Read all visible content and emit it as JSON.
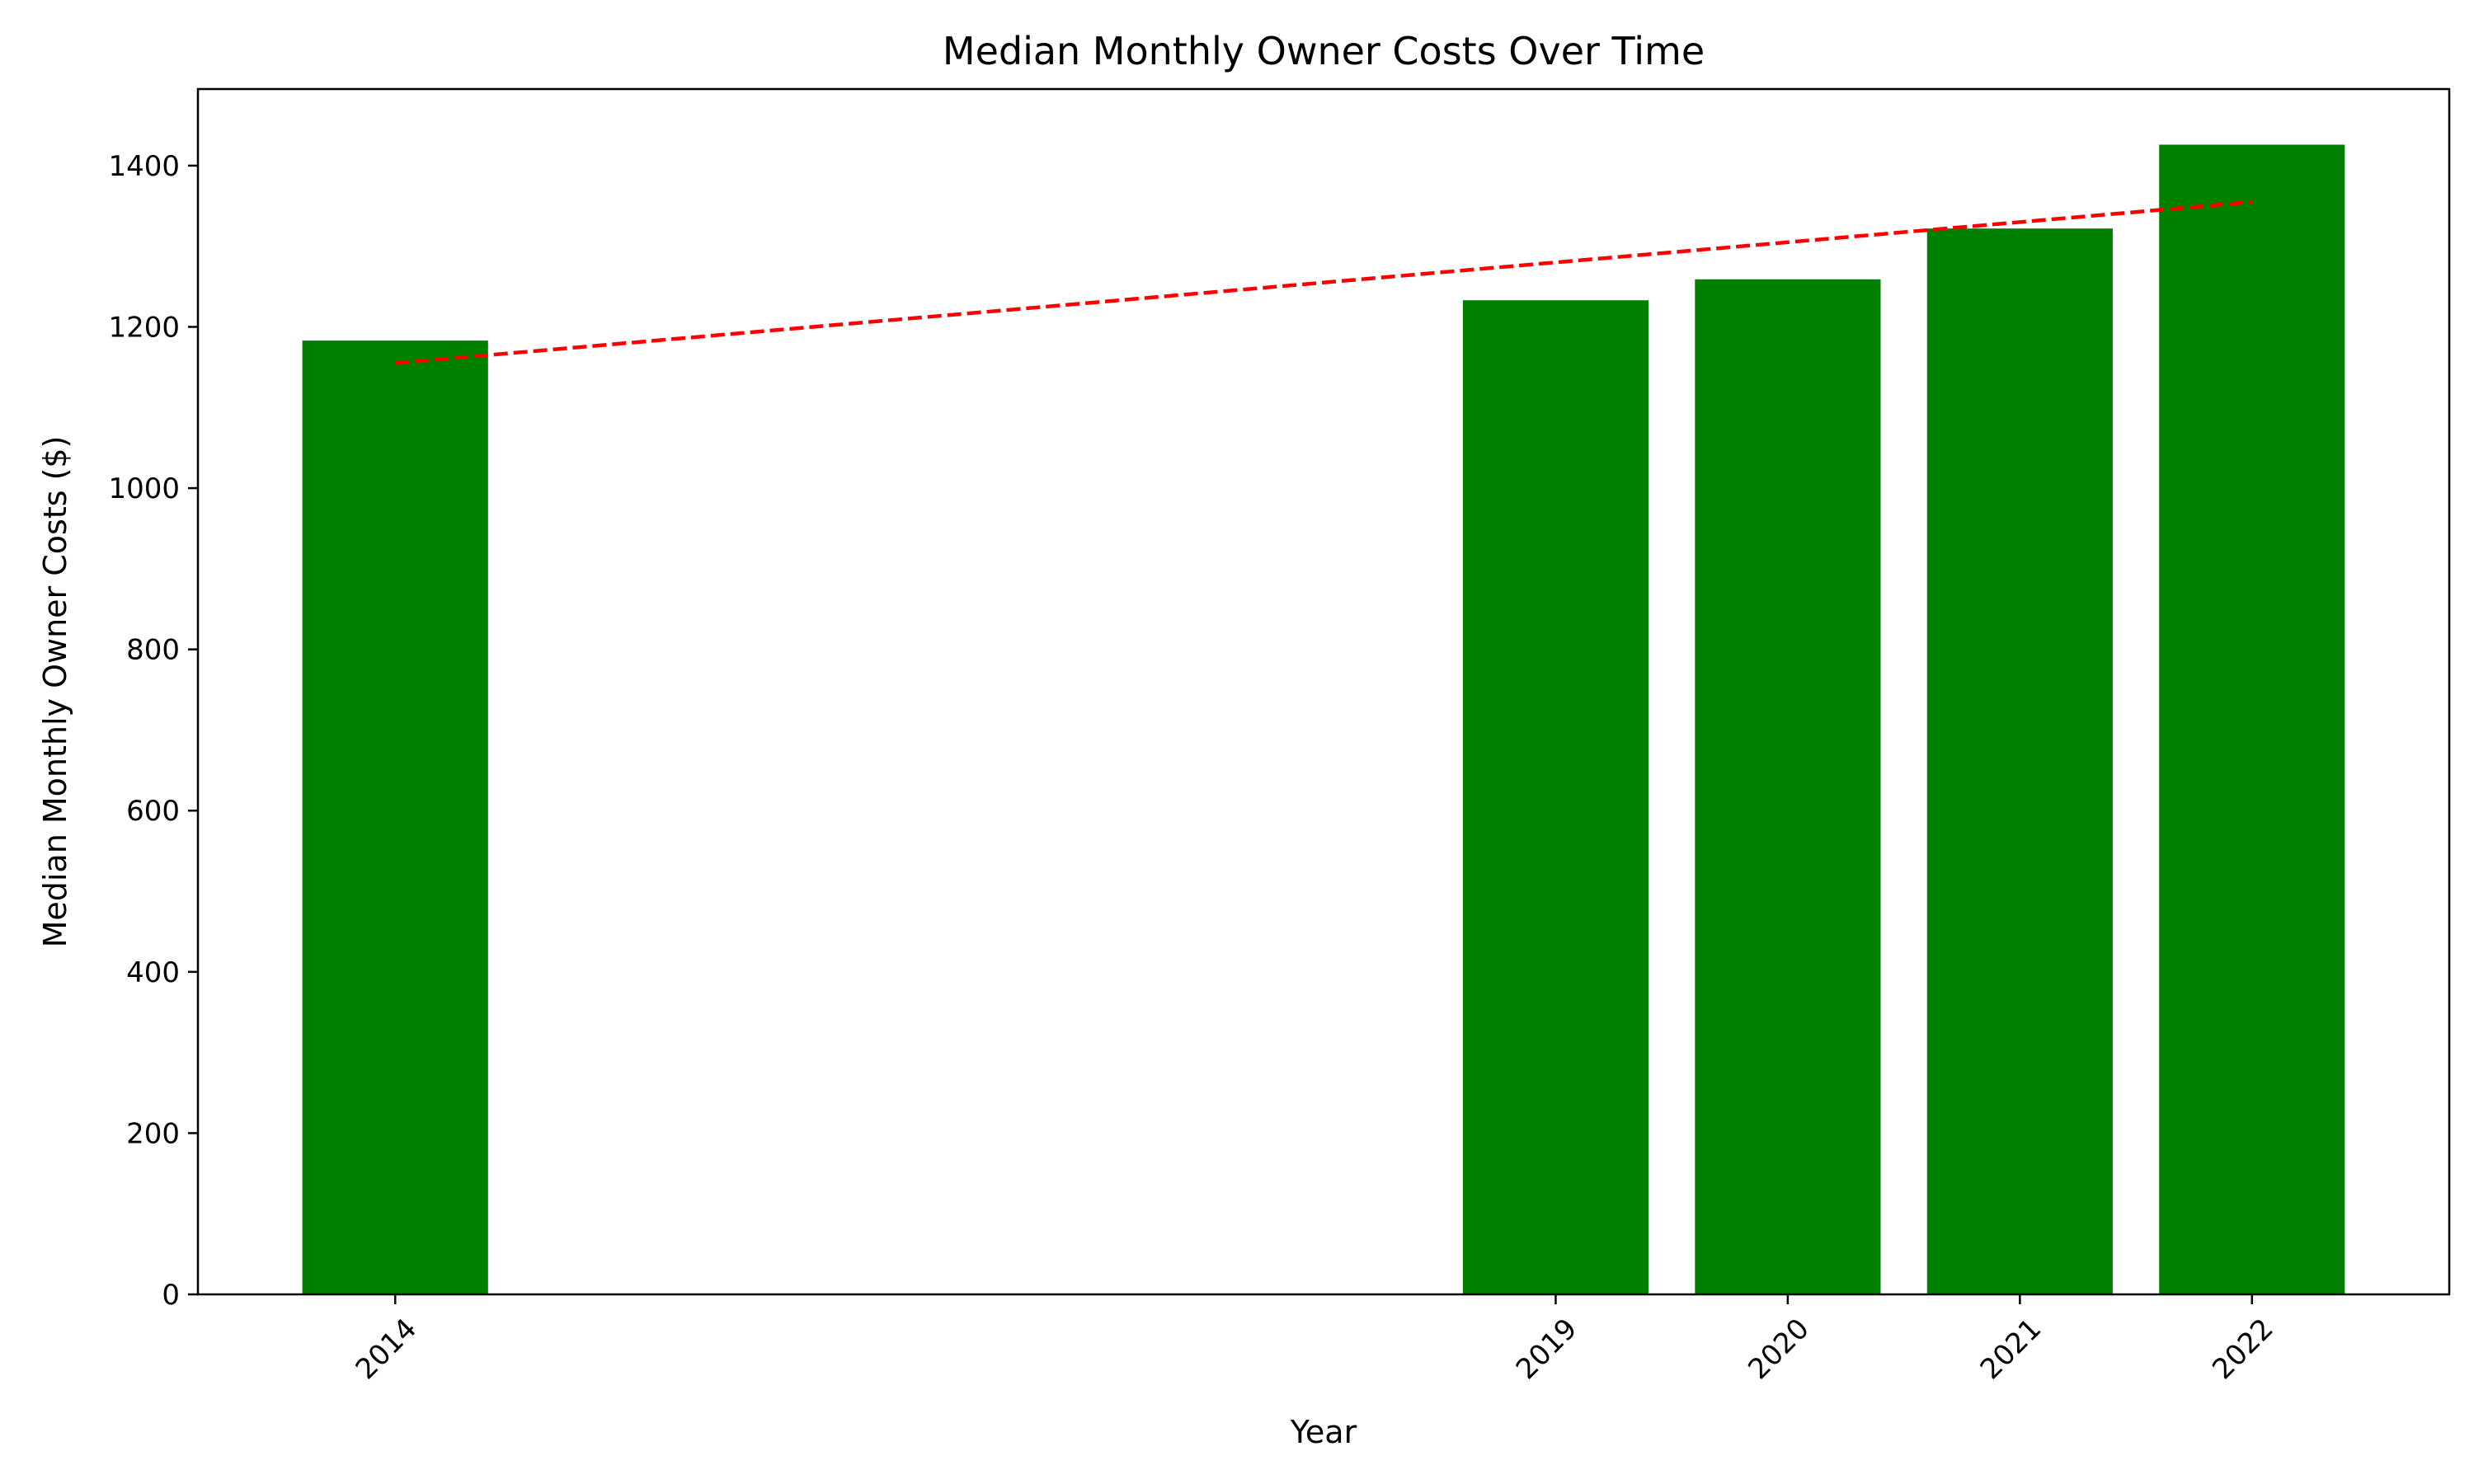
{
  "chart_data": {
    "type": "bar",
    "title": "Median Monthly Owner Costs Over Time",
    "xlabel": "Year",
    "ylabel": "Median Monthly Owner Costs ($)",
    "categories": [
      "2014",
      "2019",
      "2020",
      "2021",
      "2022"
    ],
    "x": [
      2014,
      2019,
      2020,
      2021,
      2022
    ],
    "values": [
      1183,
      1233,
      1259,
      1322,
      1426
    ],
    "bar_color": "#008000",
    "trend": {
      "style": "dashed",
      "color": "#ff0000",
      "x": [
        2014,
        2022
      ],
      "y": [
        1155,
        1355
      ]
    },
    "xlim": [
      2013.15,
      2022.85
    ],
    "ylim": [
      0,
      1495
    ],
    "yticks": [
      0,
      200,
      400,
      600,
      800,
      1000,
      1200,
      1400
    ],
    "xticks": [
      2014,
      2019,
      2020,
      2021,
      2022
    ],
    "grid": false,
    "legend": "none"
  }
}
